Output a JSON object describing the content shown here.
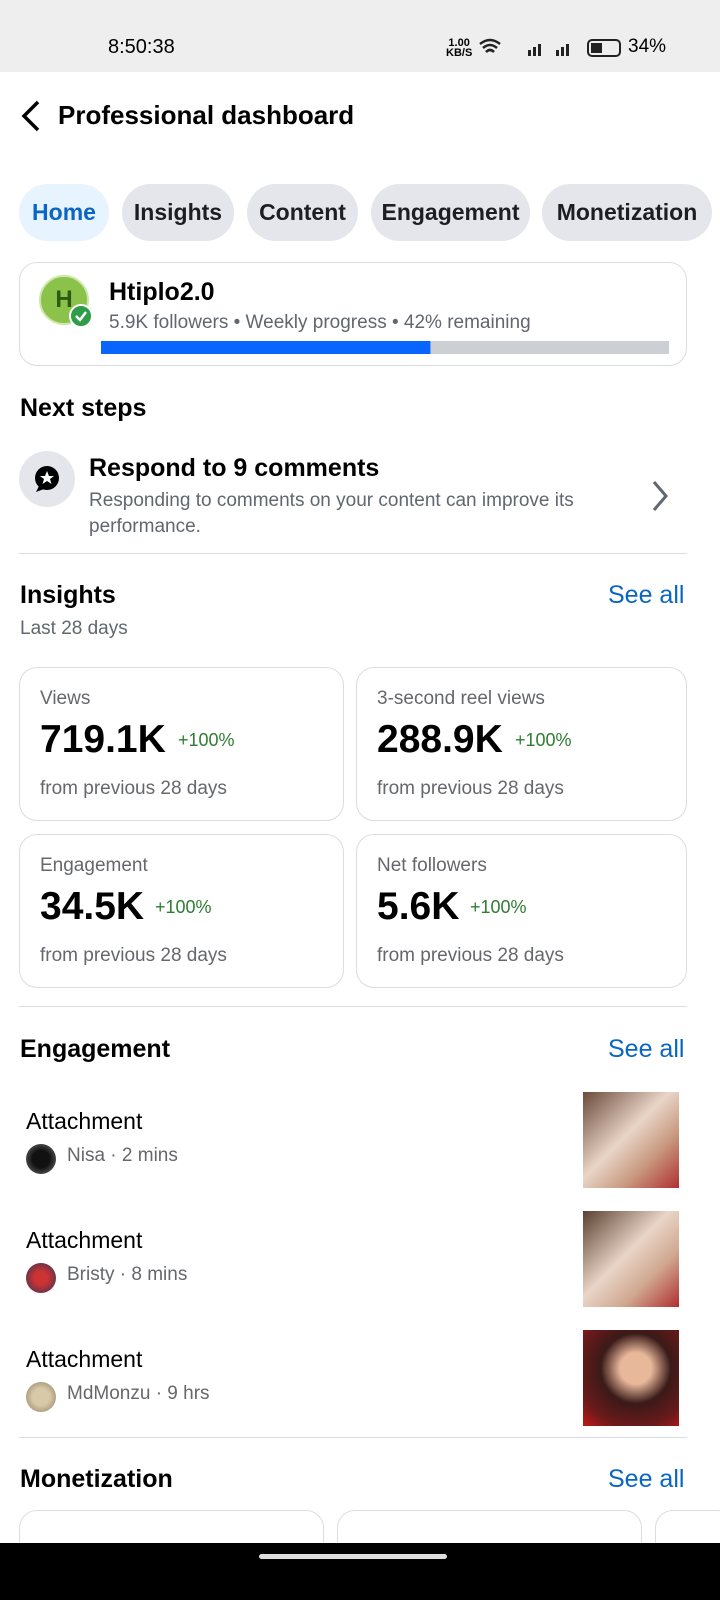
{
  "status_bar": {
    "time": "8:50:38",
    "net_speed": "1.00",
    "net_unit": "KB/S",
    "battery": "34%"
  },
  "header": {
    "title": "Professional dashboard"
  },
  "tabs": [
    "Home",
    "Insights",
    "Content",
    "Engagement",
    "Monetization"
  ],
  "profile": {
    "avatar_letter": "H",
    "name": "Htiplo2.0",
    "subtitle": "5.9K followers • Weekly progress • 42% remaining",
    "remaining": 42
  },
  "next_steps": {
    "title": "Next steps",
    "item": {
      "title": "Respond to 9 comments",
      "text": "Responding to comments on your content can improve its performance."
    }
  },
  "insights": {
    "title": "Insights",
    "see_all": "See all",
    "period": "Last 28 days",
    "cards": [
      {
        "label": "Views",
        "value": "719.1K",
        "change": "+100%",
        "note": "from previous 28 days"
      },
      {
        "label": "3-second reel views",
        "value": "288.9K",
        "change": "+100%",
        "note": "from previous 28 days"
      },
      {
        "label": "Engagement",
        "value": "34.5K",
        "change": "+100%",
        "note": "from previous 28 days"
      },
      {
        "label": "Net followers",
        "value": "5.6K",
        "change": "+100%",
        "note": "from previous 28 days"
      }
    ]
  },
  "engagement": {
    "title": "Engagement",
    "see_all": "See all",
    "items": [
      {
        "title": "Attachment",
        "meta": "Nisa · 2 mins"
      },
      {
        "title": "Attachment",
        "meta": "Bristy · 8 mins"
      },
      {
        "title": "Attachment",
        "meta": "MdMonzu · 9 hrs"
      }
    ]
  },
  "monetization": {
    "title": "Monetization",
    "see_all": "See all"
  }
}
